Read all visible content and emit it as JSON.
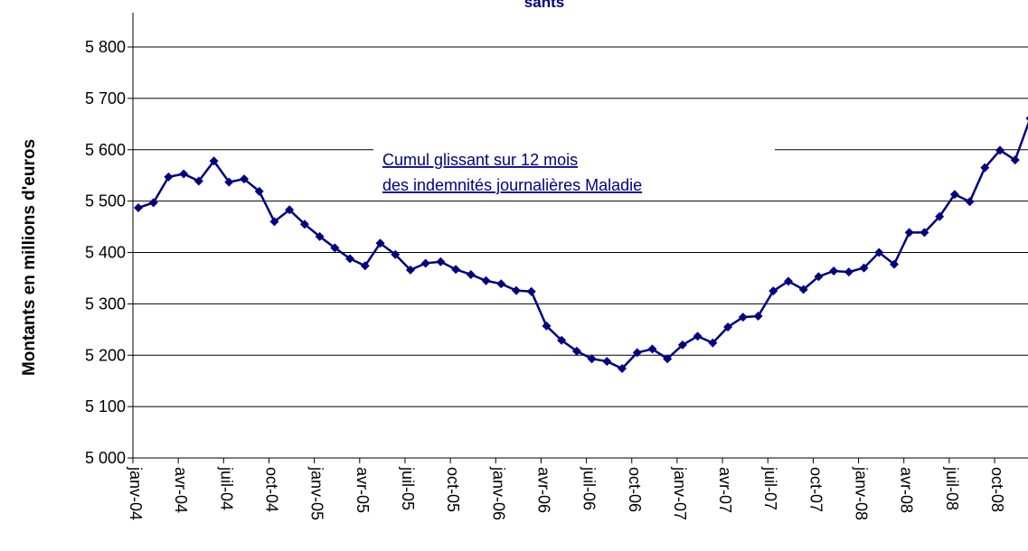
{
  "chart_data": {
    "type": "line",
    "title": "sants",
    "y_label": "Montants en millions d'euros",
    "annotation": [
      "Cumul glissant sur 12 mois ",
      "des indemnités journalières Maladie"
    ],
    "color": "#000080",
    "grid": true,
    "categories": [
      "janv-04",
      null,
      null,
      "avr-04",
      null,
      null,
      "juil-04",
      null,
      null,
      "oct-04",
      null,
      null,
      "janv-05",
      null,
      null,
      "avr-05",
      null,
      null,
      "juil-05",
      null,
      null,
      "oct-05",
      null,
      null,
      "janv-06",
      null,
      null,
      "avr-06",
      null,
      null,
      "juil-06",
      null,
      null,
      "oct-06",
      null,
      null,
      "janv-07",
      null,
      null,
      "avr-07",
      null,
      null,
      "juil-07",
      null,
      null,
      "oct-07",
      null,
      null,
      "janv-08",
      null,
      null,
      "avr-08",
      null,
      null,
      "juil-08",
      null,
      null,
      "oct-08",
      null,
      null
    ],
    "values": [
      5487,
      5497,
      5547,
      5553,
      5539,
      5578,
      5537,
      5543,
      5519,
      5460,
      5483,
      5455,
      5431,
      5409,
      5388,
      5374,
      5418,
      5396,
      5366,
      5379,
      5382,
      5367,
      5357,
      5345,
      5339,
      5326,
      5324,
      5257,
      5229,
      5208,
      5193,
      5188,
      5174,
      5205,
      5212,
      5193,
      5220,
      5237,
      5224,
      5255,
      5274,
      5276,
      5325,
      5344,
      5328,
      5353,
      5364,
      5362,
      5370,
      5400,
      5377,
      5439,
      5439,
      5470,
      5513,
      5499,
      5565,
      5599,
      5580,
      5661
    ],
    "ylim": [
      5000,
      5800
    ],
    "yticks": [
      {
        "value": 5000,
        "label": "5 000"
      },
      {
        "value": 5100,
        "label": "5 100"
      },
      {
        "value": 5200,
        "label": "5 200"
      },
      {
        "value": 5300,
        "label": "5 300"
      },
      {
        "value": 5400,
        "label": "5 400"
      },
      {
        "value": 5500,
        "label": "5 500"
      },
      {
        "value": 5600,
        "label": "5 600"
      },
      {
        "value": 5700,
        "label": "5 700"
      },
      {
        "value": 5800,
        "label": "5 800"
      }
    ]
  }
}
